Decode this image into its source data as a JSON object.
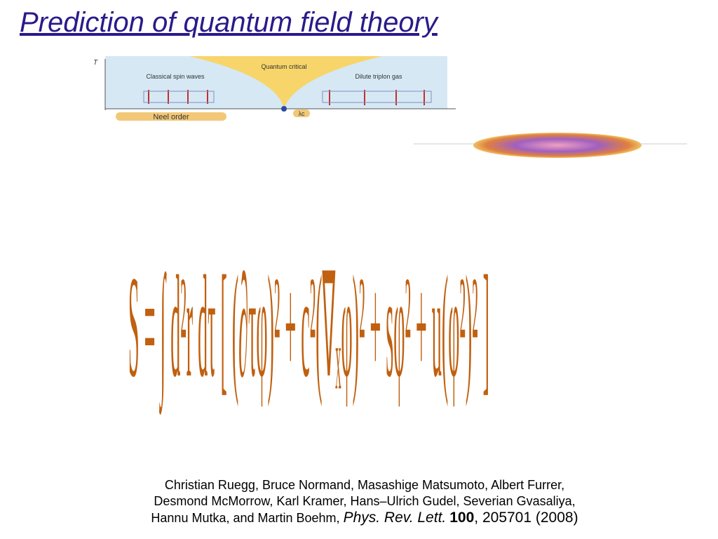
{
  "header": {
    "title": "Prediction of quantum field theory"
  },
  "diagram": {
    "axis_y": "T",
    "left": "Classical spin waves",
    "center": "Quantum critical",
    "right": "Dilute triplon gas",
    "bottom": "Neel order",
    "point": "λc"
  },
  "formula": "S = ∫ d²r dτ [ (∂τφ)² + c²(∇ₓφ)² + sφ² + u(φ²)² ]",
  "citation": {
    "lines": [
      "Christian Ruegg, Bruce Normand, Masashige Matsumoto, Albert Furrer,",
      "Desmond McMorrow, Karl Kramer, Hans–Ulrich Gudel, Severian Gvasaliya,",
      "Hannu Mutka, and Martin Boehm,"
    ],
    "journal": "Phys. Rev. Lett.",
    "volume": "100",
    "pages": ", 205701 (2008)"
  }
}
